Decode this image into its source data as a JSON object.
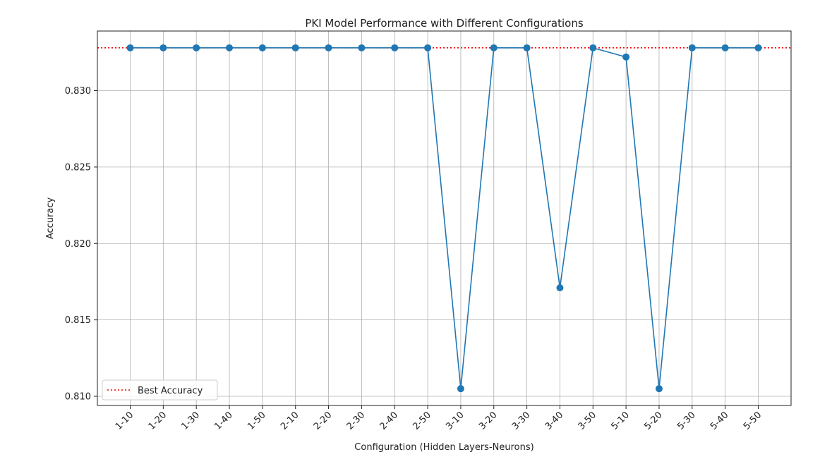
{
  "chart_data": {
    "type": "line",
    "title": "PKI Model Performance with Different Configurations",
    "xlabel": "Configuration (Hidden Layers-Neurons)",
    "ylabel": "Accuracy",
    "categories": [
      "1-10",
      "1-20",
      "1-30",
      "1-40",
      "1-50",
      "2-10",
      "2-20",
      "2-30",
      "2-40",
      "2-50",
      "3-10",
      "3-20",
      "3-30",
      "3-40",
      "3-50",
      "5-10",
      "5-20",
      "5-30",
      "5-40",
      "5-50"
    ],
    "series": [
      {
        "values": [
          0.8328,
          0.8328,
          0.8328,
          0.8328,
          0.8328,
          0.8328,
          0.8328,
          0.8328,
          0.8328,
          0.8328,
          0.8105,
          0.8328,
          0.8328,
          0.8171,
          0.8328,
          0.8322,
          0.8105,
          0.8328,
          0.8328,
          0.8328
        ],
        "color": "#1f77b4",
        "marker": "circle"
      }
    ],
    "reference_line": {
      "name": "Best Accuracy",
      "value": 0.8328,
      "color": "#ff0000",
      "style": "dotted"
    },
    "ylim": [
      0.8094,
      0.8339
    ],
    "yticks": [
      "0.810",
      "0.815",
      "0.820",
      "0.825",
      "0.830"
    ],
    "ytick_values": [
      0.81,
      0.815,
      0.82,
      0.825,
      0.83
    ],
    "grid": true,
    "legend": {
      "position": "bottom-left"
    }
  }
}
